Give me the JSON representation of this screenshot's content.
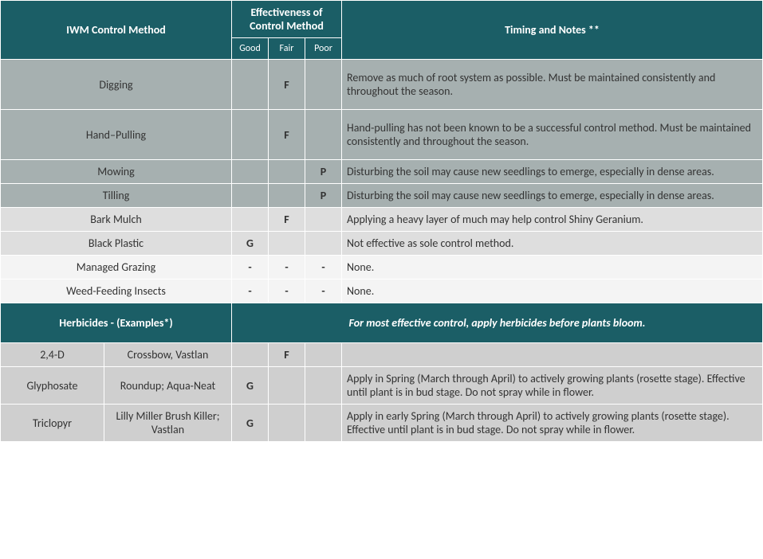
{
  "colors": {
    "header_bg": "#1b5e66",
    "header_fg": "#ffffff",
    "border": "#ffffff",
    "row_dark": "#a6b0b0",
    "row_light": "#dedede",
    "row_white": "#f4f4f4",
    "row_herb": "#cfcfcf",
    "text": "#333333"
  },
  "headers": {
    "method": "IWM Control Method",
    "effectiveness": "Effectiveness of Control Method",
    "good": "Good",
    "fair": "Fair",
    "poor": "Poor",
    "timing": "Timing and Notes **"
  },
  "rows": [
    {
      "method": "Digging",
      "good": "",
      "fair": "F",
      "poor": "",
      "notes": "Remove as much of root system as possible. Must be maintained consistently and throughout the season.",
      "shade": "dark",
      "tall": true
    },
    {
      "method": "Hand–Pulling",
      "good": "",
      "fair": "F",
      "poor": "",
      "notes": "Hand-pulling has not been known to be a successful control method. Must be maintained consistently and throughout the season.",
      "shade": "dark",
      "tall": true
    },
    {
      "method": "Mowing",
      "good": "",
      "fair": "",
      "poor": "P",
      "notes": "Disturbing the soil may cause new seedlings to emerge, especially in dense areas.",
      "shade": "dark"
    },
    {
      "method": "Tilling",
      "good": "",
      "fair": "",
      "poor": "P",
      "notes": "Disturbing the soil may cause new seedlings to emerge, especially in dense areas.",
      "shade": "dark"
    },
    {
      "method": "Bark Mulch",
      "good": "",
      "fair": "F",
      "poor": "",
      "notes": "Applying a heavy layer of much may help control Shiny Geranium.",
      "shade": "light"
    },
    {
      "method": "Black Plastic",
      "good": "G",
      "fair": "",
      "poor": "",
      "notes": "Not effective as sole control method.",
      "shade": "light"
    },
    {
      "method": "Managed Grazing",
      "good": "-",
      "fair": "-",
      "poor": "-",
      "notes": "None.",
      "shade": "white"
    },
    {
      "method": "Weed-Feeding Insects",
      "good": "-",
      "fair": "-",
      "poor": "-",
      "notes": "None.",
      "shade": "white"
    }
  ],
  "herb_section": {
    "label": "Herbicides - (Examples*)",
    "note": "For most effective control, apply herbicides before plants bloom."
  },
  "herb_rows": [
    {
      "ingredient": "2,4-D",
      "product": "Crossbow, Vastlan",
      "good": "",
      "fair": "F",
      "poor": "",
      "notes": ""
    },
    {
      "ingredient": "Glyphosate",
      "product": "Roundup; Aqua-Neat",
      "good": "G",
      "fair": "",
      "poor": "",
      "notes": "Apply in Spring (March through April) to actively growing plants (rosette stage). Effective until plant is in bud stage. Do not spray while in flower."
    },
    {
      "ingredient": "Triclopyr",
      "product": "Lilly Miller Brush Killer; Vastlan",
      "good": "G",
      "fair": "",
      "poor": "",
      "notes": "Apply in early Spring (March through April) to actively growing plants (rosette stage). Effective until plant is in bud stage. Do not spray while in flower."
    }
  ]
}
